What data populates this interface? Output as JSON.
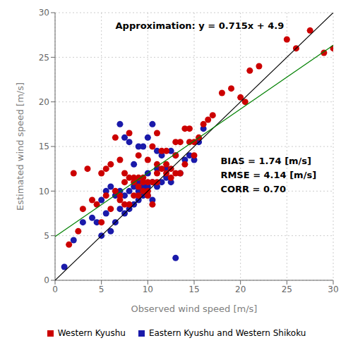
{
  "chart_data": {
    "type": "scatter",
    "xlabel": "Observed wind speed [m/s]",
    "ylabel": "Estimated wind speed [m/s]",
    "annotations": [
      "Approximation: y = 0.715x + 4.9",
      "BIAS = 1.74 [m/s]",
      "RMSE = 4.14 [m/s]",
      "CORR = 0.70"
    ],
    "xlim": [
      0,
      30
    ],
    "ylim": [
      0,
      30
    ],
    "xticks": [
      0,
      5,
      10,
      15,
      20,
      25,
      30
    ],
    "yticks": [
      0,
      5,
      10,
      15,
      20,
      25,
      30
    ],
    "grid": true,
    "series": [
      {
        "name": "Western Kyushu",
        "type": "scatter",
        "color": "#CC0000",
        "x": [
          1.5,
          2.0,
          2.5,
          3.0,
          3.5,
          4.0,
          4.5,
          5.0,
          5.0,
          5.5,
          5.5,
          6.0,
          6.0,
          6.5,
          6.5,
          7.0,
          7.0,
          7.0,
          7.5,
          7.5,
          7.5,
          8.0,
          8.0,
          8.0,
          8.5,
          8.5,
          8.5,
          9.0,
          9.0,
          9.0,
          9.0,
          9.5,
          9.5,
          9.5,
          10.0,
          10.0,
          10.0,
          10.0,
          10.5,
          10.5,
          10.5,
          11.0,
          11.0,
          11.0,
          11.0,
          11.5,
          11.5,
          12.0,
          12.0,
          12.0,
          12.5,
          12.5,
          13.0,
          13.0,
          13.0,
          13.5,
          13.5,
          14.0,
          14.0,
          14.5,
          14.5,
          15.0,
          15.0,
          15.5,
          16.0,
          16.5,
          17.0,
          18.0,
          19.0,
          20.0,
          20.5,
          21.0,
          22.0,
          25.0,
          26.0,
          27.5,
          29.0,
          30.0
        ],
        "values": [
          4.0,
          12.0,
          5.5,
          8.0,
          12.5,
          9.0,
          8.5,
          6.5,
          12.0,
          9.5,
          12.5,
          8.0,
          13.0,
          10.0,
          16.0,
          9.0,
          9.5,
          13.5,
          8.5,
          11.0,
          12.0,
          8.5,
          11.5,
          16.5,
          9.5,
          11.0,
          11.5,
          9.5,
          10.5,
          11.5,
          14.0,
          10.0,
          11.0,
          11.5,
          9.5,
          10.0,
          11.0,
          13.5,
          8.5,
          11.0,
          15.0,
          11.0,
          12.0,
          13.0,
          16.5,
          12.5,
          14.5,
          12.0,
          13.0,
          14.5,
          11.5,
          12.5,
          12.0,
          14.0,
          15.5,
          12.0,
          15.5,
          13.0,
          17.0,
          15.5,
          17.0,
          14.0,
          15.5,
          16.0,
          17.5,
          18.0,
          18.5,
          21.0,
          21.5,
          20.5,
          20.0,
          23.5,
          24.0,
          27.0,
          26.0,
          28.0,
          25.5,
          26.0
        ]
      },
      {
        "name": "Eastern Kyushu and Western Shikoku",
        "type": "scatter",
        "color": "#1a1aaa",
        "x": [
          1.0,
          2.0,
          3.0,
          4.0,
          4.5,
          5.0,
          5.0,
          5.5,
          5.5,
          6.0,
          6.0,
          6.5,
          6.5,
          7.0,
          7.0,
          7.0,
          7.5,
          7.5,
          7.5,
          8.0,
          8.0,
          8.0,
          8.5,
          8.5,
          8.5,
          9.0,
          9.0,
          9.0,
          9.0,
          9.5,
          9.5,
          9.5,
          10.0,
          10.0,
          10.0,
          10.0,
          10.5,
          10.5,
          10.5,
          11.0,
          11.0,
          11.0,
          11.5,
          11.5,
          12.0,
          12.0,
          12.5,
          12.5,
          13.0,
          13.0,
          13.5,
          14.0,
          14.5,
          15.0,
          15.5,
          16.0
        ],
        "values": [
          1.5,
          4.5,
          6.5,
          7.0,
          6.5,
          5.0,
          9.0,
          7.5,
          10.0,
          5.5,
          10.5,
          6.5,
          9.5,
          8.0,
          10.0,
          17.5,
          7.5,
          9.5,
          16.0,
          8.0,
          10.0,
          15.5,
          8.5,
          10.5,
          13.0,
          9.0,
          10.0,
          11.0,
          15.0,
          9.5,
          10.5,
          15.0,
          9.5,
          10.5,
          12.0,
          16.0,
          9.0,
          11.0,
          17.5,
          10.5,
          12.5,
          14.5,
          11.0,
          14.0,
          11.5,
          12.5,
          11.0,
          14.5,
          2.5,
          14.0,
          12.0,
          13.5,
          14.0,
          13.5,
          15.5,
          17.0
        ]
      },
      {
        "type": "line",
        "color": "black",
        "x": [
          0,
          30
        ],
        "values": [
          0,
          30
        ]
      },
      {
        "type": "line",
        "color": "green",
        "x": [
          0,
          30
        ],
        "values": [
          4.9,
          26.35
        ]
      }
    ]
  }
}
